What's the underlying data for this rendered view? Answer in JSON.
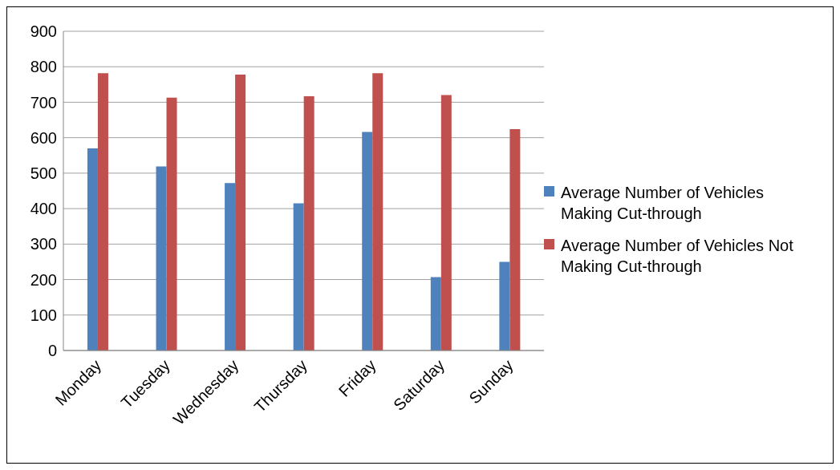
{
  "chart_data": {
    "type": "bar",
    "categories": [
      "Monday",
      "Tuesday",
      "Wednesday",
      "Thursday",
      "Friday",
      "Saturday",
      "Sunday"
    ],
    "series": [
      {
        "name": "Average Number of Vehicles Making Cut-through",
        "color": "#4f81bd",
        "values": [
          570,
          519,
          472,
          415,
          616,
          207,
          250
        ]
      },
      {
        "name": "Average Number of Vehicles Not Making Cut-through",
        "color": "#c0504d",
        "values": [
          782,
          713,
          778,
          717,
          782,
          720,
          624
        ]
      }
    ],
    "ylim": [
      0,
      900
    ],
    "yticks": [
      0,
      100,
      200,
      300,
      400,
      500,
      600,
      700,
      800,
      900
    ],
    "grid": "y",
    "legend": "right"
  }
}
